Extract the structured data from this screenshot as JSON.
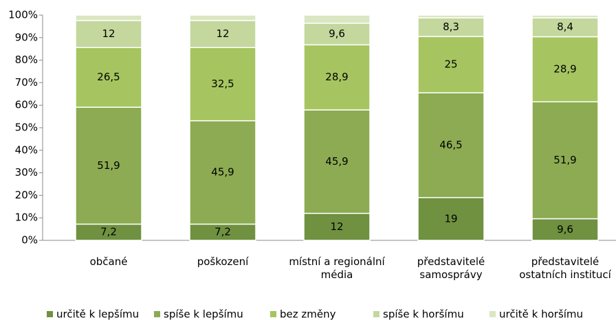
{
  "chart_data": {
    "type": "stacked_bar",
    "categories": [
      "občané",
      "poškození",
      "místní a regionální\nmédia",
      "představitelé\nsamosprávy",
      "představitelé\nostatních institucí"
    ],
    "series": [
      {
        "name": "určitě k lepšímu",
        "color": "#6f9140",
        "values": [
          7.2,
          7.2,
          12,
          19,
          9.6
        ],
        "value_labels": [
          "7,2",
          "7,2",
          "12",
          "19",
          "9,6"
        ]
      },
      {
        "name": "spíše k lepšímu",
        "color": "#8cab52",
        "values": [
          51.9,
          45.9,
          45.9,
          46.5,
          51.9
        ],
        "value_labels": [
          "51,9",
          "45,9",
          "45,9",
          "46,5",
          "51,9"
        ]
      },
      {
        "name": "bez změny",
        "color": "#a6c560",
        "values": [
          26.5,
          32.5,
          28.9,
          25,
          28.9
        ],
        "value_labels": [
          "26,5",
          "32,5",
          "28,9",
          "25",
          "28,9"
        ]
      },
      {
        "name": "spíše k horšímu",
        "color": "#c4d79d",
        "values": [
          12,
          12,
          9.6,
          8.3,
          8.4
        ],
        "value_labels": [
          "12",
          "12",
          "9,6",
          "8,3",
          "8,4"
        ]
      },
      {
        "name": "určitě k horšímu",
        "color": "#dbe6c2",
        "values": [
          2.4,
          2.4,
          3.6,
          1.2,
          1.2
        ]
      }
    ],
    "ylim": [
      0,
      100
    ],
    "yticks": [
      {
        "value": 0,
        "label": "0%"
      },
      {
        "value": 10,
        "label": "10%"
      },
      {
        "value": 20,
        "label": "20%"
      },
      {
        "value": 30,
        "label": "30%"
      },
      {
        "value": 40,
        "label": "40%"
      },
      {
        "value": 50,
        "label": "50%"
      },
      {
        "value": 60,
        "label": "60%"
      },
      {
        "value": 70,
        "label": "70%"
      },
      {
        "value": 80,
        "label": "80%"
      },
      {
        "value": 90,
        "label": "90%"
      },
      {
        "value": 100,
        "label": "100%"
      }
    ],
    "legend": "bottom"
  }
}
